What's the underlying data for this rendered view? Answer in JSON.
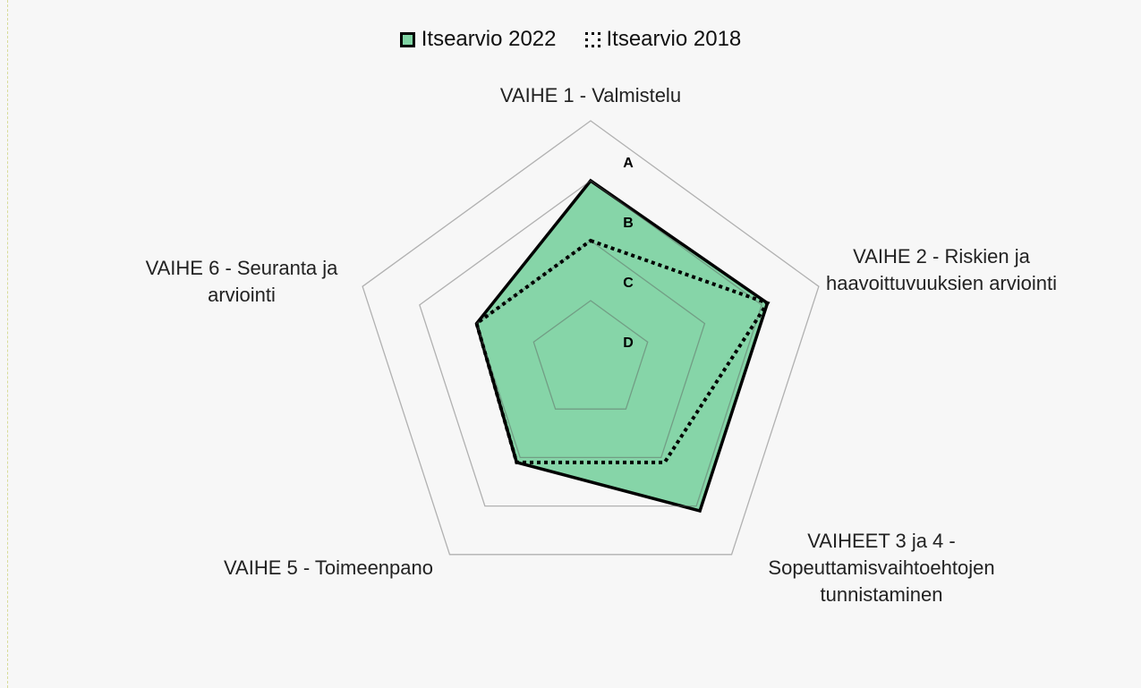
{
  "chart_data": {
    "type": "radar",
    "categories": [
      "VAIHE 1 - Valmistelu",
      "VAIHE 2 - Riskien ja haavoittuvuuksien arviointi",
      "VAIHEET 3 ja 4 - Sopeuttamisvaihtoehtojen tunnistaminen",
      "VAIHE 5 - Toimeenpano",
      "VAIHE 6 - Seuranta ja arviointi"
    ],
    "series": [
      {
        "name": "Itsearvio 2022",
        "color": "#7fd3a3",
        "values": [
          3,
          3.1,
          3.1,
          2.1,
          2
        ]
      },
      {
        "name": "Itsearvio 2018",
        "color": "#000000",
        "values": [
          2,
          3.1,
          2.1,
          2.1,
          2
        ]
      }
    ],
    "ylim": [
      0,
      4
    ],
    "yticks": [
      {
        "value": 1,
        "label": "D"
      },
      {
        "value": 2,
        "label": "C"
      },
      {
        "value": 3,
        "label": "B"
      },
      {
        "value": 4,
        "label": "A"
      }
    ],
    "legend": "top"
  }
}
